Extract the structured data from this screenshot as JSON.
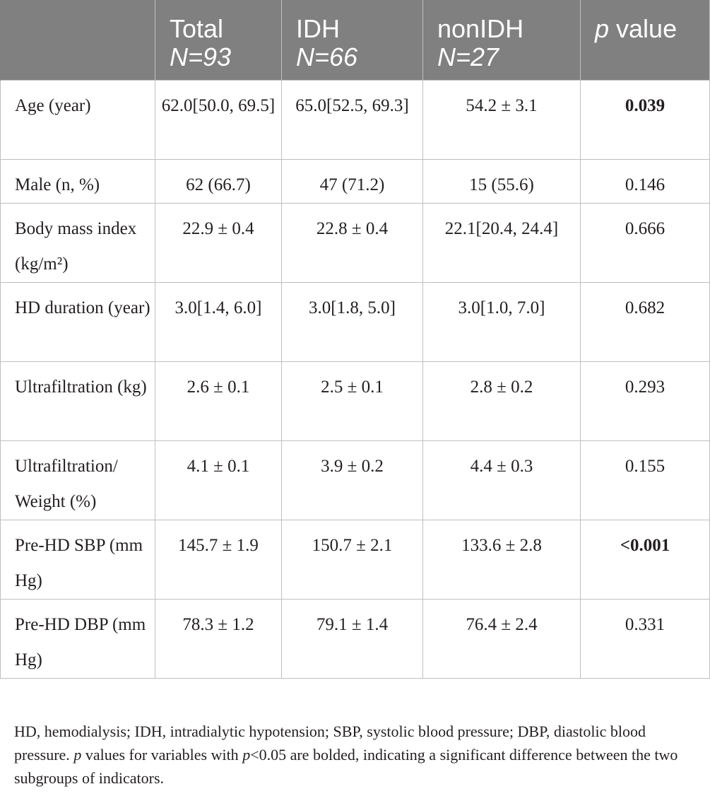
{
  "table": {
    "headers": [
      {
        "line1": "",
        "line2": ""
      },
      {
        "line1": "Total",
        "line2": "N=93"
      },
      {
        "line1": "IDH",
        "line2": "N=66"
      },
      {
        "line1": "nonIDH",
        "line2": "N=27"
      },
      {
        "line1": "p value",
        "line2": ""
      }
    ],
    "rows": [
      {
        "label": "Age (year)",
        "total": "62.0[50.0, 69.5]",
        "idh": "65.0[52.5, 69.3]",
        "nonidh": "54.2 ± 3.1",
        "p": "0.039",
        "p_bold": true
      },
      {
        "label": "Male (n, %)",
        "total": "62 (66.7)",
        "idh": "47 (71.2)",
        "nonidh": "15 (55.6)",
        "p": "0.146",
        "p_bold": false
      },
      {
        "label": "Body mass index (kg/m²)",
        "total": "22.9 ± 0.4",
        "idh": "22.8 ± 0.4",
        "nonidh": "22.1[20.4, 24.4]",
        "p": "0.666",
        "p_bold": false
      },
      {
        "label": "HD duration (year)",
        "total": "3.0[1.4, 6.0]",
        "idh": "3.0[1.8, 5.0]",
        "nonidh": "3.0[1.0, 7.0]",
        "p": "0.682",
        "p_bold": false
      },
      {
        "label": "Ultrafiltration (kg)",
        "total": "2.6 ± 0.1",
        "idh": "2.5 ± 0.1",
        "nonidh": "2.8 ± 0.2",
        "p": "0.293",
        "p_bold": false
      },
      {
        "label": "Ultrafiltration/ Weight (%)",
        "total": "4.1 ± 0.1",
        "idh": "3.9 ± 0.2",
        "nonidh": "4.4 ± 0.3",
        "p": "0.155",
        "p_bold": false
      },
      {
        "label": "Pre-HD SBP (mm Hg)",
        "total": "145.7 ± 1.9",
        "idh": "150.7 ± 2.1",
        "nonidh": "133.6 ± 2.8",
        "p": "<0.001",
        "p_bold": true
      },
      {
        "label": "Pre-HD DBP (mm Hg)",
        "total": "78.3 ± 1.2",
        "idh": "79.1 ± 1.4",
        "nonidh": "76.4 ± 2.4",
        "p": "0.331",
        "p_bold": false
      }
    ]
  },
  "footnote": {
    "part1": "HD, hemodialysis; IDH, intradialytic hypotension; SBP, systolic blood pressure; DBP, diastolic blood pressure. ",
    "p_italic_1": "p",
    "part2": " values for variables with ",
    "p_italic_2": "p",
    "part3": "<0.05 are bolded, indicating a significant difference between the two subgroups of indicators."
  }
}
